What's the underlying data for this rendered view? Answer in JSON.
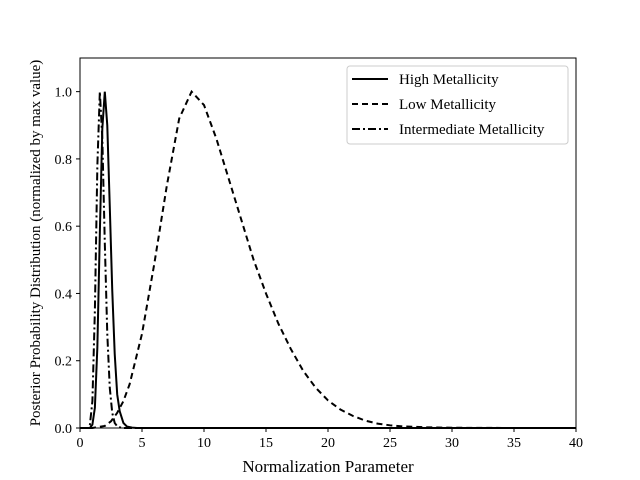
{
  "chart_data": {
    "type": "line",
    "title": "",
    "xlabel": "Normalization Parameter",
    "ylabel": "Posterior Probability Distribution (normalized by max value)",
    "xlim": [
      0,
      40
    ],
    "ylim": [
      0,
      1.1
    ],
    "xticks": [
      0,
      5,
      10,
      15,
      20,
      25,
      30,
      35,
      40
    ],
    "yticks": [
      0.0,
      0.2,
      0.4,
      0.6,
      0.8,
      1.0
    ],
    "xtick_labels": [
      "0",
      "5",
      "10",
      "15",
      "20",
      "25",
      "30",
      "35",
      "40"
    ],
    "ytick_labels": [
      "0.0",
      "0.2",
      "0.4",
      "0.6",
      "0.8",
      "1.0"
    ],
    "grid": false,
    "legend_position": "top-right",
    "series": [
      {
        "name": "High Metallicity",
        "style": "solid",
        "x": [
          0,
          0.8,
          1.0,
          1.2,
          1.4,
          1.6,
          1.8,
          2.0,
          2.2,
          2.4,
          2.6,
          2.8,
          3.0,
          3.2,
          3.5,
          3.8,
          4.2,
          4.6,
          5.0,
          40
        ],
        "y": [
          0,
          0.0,
          0.01,
          0.06,
          0.24,
          0.58,
          0.89,
          1.0,
          0.9,
          0.66,
          0.41,
          0.22,
          0.1,
          0.05,
          0.015,
          0.004,
          0.001,
          0.0,
          0.0,
          0.0
        ]
      },
      {
        "name": "Low Metallicity",
        "style": "dashed",
        "x": [
          0,
          1,
          2,
          2.5,
          3,
          3.5,
          4,
          5,
          6,
          7,
          8,
          9,
          10,
          11,
          12,
          13,
          14,
          15,
          16,
          17,
          18,
          19,
          20,
          21,
          22,
          23,
          24,
          25,
          26,
          28,
          30,
          35,
          40
        ],
        "y": [
          0,
          0.0,
          0.006,
          0.02,
          0.045,
          0.08,
          0.13,
          0.28,
          0.49,
          0.72,
          0.92,
          1.0,
          0.96,
          0.86,
          0.74,
          0.62,
          0.5,
          0.4,
          0.31,
          0.235,
          0.17,
          0.12,
          0.082,
          0.055,
          0.036,
          0.022,
          0.013,
          0.008,
          0.005,
          0.002,
          0.0007,
          0.0,
          0.0
        ]
      },
      {
        "name": "Intermediate Metallicity",
        "style": "dashdot",
        "x": [
          0,
          0.6,
          0.8,
          1.0,
          1.2,
          1.4,
          1.6,
          1.8,
          2.0,
          2.2,
          2.4,
          2.6,
          2.8,
          3.0,
          3.3,
          3.6,
          4.0,
          40
        ],
        "y": [
          0,
          0.0,
          0.01,
          0.08,
          0.35,
          0.78,
          1.0,
          0.86,
          0.55,
          0.28,
          0.12,
          0.045,
          0.015,
          0.005,
          0.001,
          0.0,
          0.0,
          0.0
        ]
      }
    ]
  }
}
